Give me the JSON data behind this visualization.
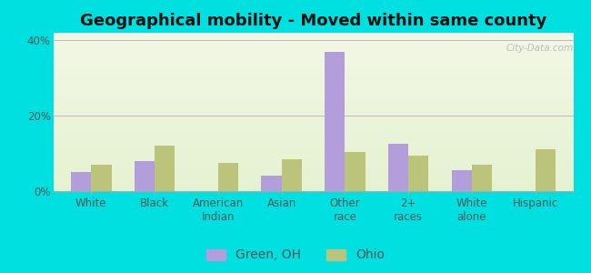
{
  "title": "Geographical mobility - Moved within same county",
  "categories": [
    "White",
    "Black",
    "American\nIndian",
    "Asian",
    "Other\nrace",
    "2+\nraces",
    "White\nalone",
    "Hispanic"
  ],
  "green_oh": [
    5.0,
    8.0,
    0.0,
    4.0,
    37.0,
    12.5,
    5.5,
    0.0
  ],
  "ohio": [
    7.0,
    12.0,
    7.5,
    8.5,
    10.5,
    9.5,
    7.0,
    11.0
  ],
  "bar_color_green": "#b39ddb",
  "bar_color_ohio": "#bbc47a",
  "outer_bg": "#00e0e0",
  "ylim": [
    0,
    42
  ],
  "yticks": [
    0,
    20,
    40
  ],
  "ytick_labels": [
    "0%",
    "20%",
    "40%"
  ],
  "legend_label_green": "Green, OH",
  "legend_label_ohio": "Ohio",
  "title_fontsize": 13,
  "tick_fontsize": 8.5,
  "legend_fontsize": 10,
  "bar_width": 0.32
}
